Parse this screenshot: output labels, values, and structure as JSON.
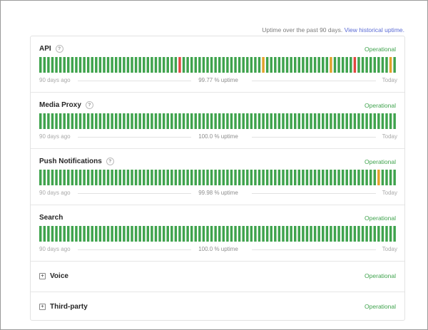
{
  "header": {
    "text": "Uptime over the past 90 days.",
    "link": "View historical uptime."
  },
  "colors": {
    "operational": "#3fa34d",
    "minor": "#e0a12a",
    "major": "#e0463f",
    "link": "#5a6ad4"
  },
  "components": [
    {
      "name": "API",
      "status": "Operational",
      "start_label": "90 days ago",
      "uptime": "99.77 % uptime",
      "end_label": "Today",
      "days": [
        "ok",
        "ok",
        "ok",
        "ok",
        "ok",
        "ok",
        "ok",
        "ok",
        "ok",
        "ok",
        "ok",
        "ok",
        "ok",
        "ok",
        "ok",
        "ok",
        "ok",
        "ok",
        "ok",
        "ok",
        "ok",
        "ok",
        "ok",
        "ok",
        "ok",
        "ok",
        "ok",
        "ok",
        "ok",
        "ok",
        "ok",
        "ok",
        "ok",
        "ok",
        "ok",
        "ok",
        "ok",
        "ok",
        "ok",
        "ok",
        "ok",
        "ok",
        "ok",
        "ok",
        "ok",
        "ok",
        "ok",
        "ok",
        "ok",
        "ok",
        "ok",
        "ok",
        "ok",
        "ok",
        "ok",
        "ok",
        "ok",
        "ok",
        "ok",
        "ok",
        "ok",
        "ok",
        "ok",
        "ok",
        "ok",
        "ok",
        "ok",
        "ok",
        "ok",
        "ok",
        "ok",
        "ok",
        "ok",
        "ok",
        "ok",
        "ok",
        "ok",
        "ok",
        "ok",
        "ok",
        "ok",
        "ok",
        "ok",
        "ok",
        "ok",
        "ok",
        "ok",
        "ok",
        "ok",
        "ok"
      ],
      "incidents": [
        {
          "day": 35,
          "level": "major"
        },
        {
          "day": 56,
          "level": "minor"
        },
        {
          "day": 73,
          "level": "minor"
        },
        {
          "day": 79,
          "level": "major"
        },
        {
          "day": 88,
          "level": "minor"
        }
      ]
    },
    {
      "name": "Media Proxy",
      "status": "Operational",
      "start_label": "90 days ago",
      "uptime": "100.0 % uptime",
      "end_label": "Today",
      "incidents": []
    },
    {
      "name": "Push Notifications",
      "status": "Operational",
      "start_label": "90 days ago",
      "uptime": "99.98 % uptime",
      "end_label": "Today",
      "incidents": [
        {
          "day": 85,
          "level": "minor"
        }
      ]
    },
    {
      "name": "Search",
      "status": "Operational",
      "start_label": "90 days ago",
      "uptime": "100.0 % uptime",
      "end_label": "Today",
      "incidents": []
    }
  ],
  "groups": [
    {
      "name": "Voice",
      "status": "Operational"
    },
    {
      "name": "Third-party",
      "status": "Operational"
    }
  ]
}
